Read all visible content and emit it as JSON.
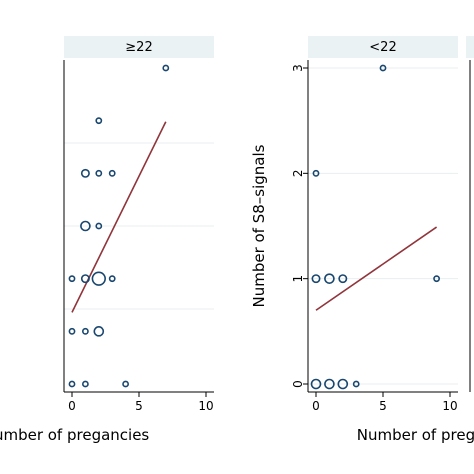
{
  "chart_data": [
    {
      "type": "scatter",
      "strip": "",
      "xlabel": "Number of pregancies",
      "ylabel": "",
      "xlim": [
        0,
        10
      ],
      "ylim": [
        0,
        3
      ],
      "xticks": [
        10
      ],
      "yticks": [],
      "points": [
        {
          "x": 9,
          "y": 1,
          "n": 1
        }
      ],
      "fit": {
        "x1": 0,
        "y1": 0.5,
        "x2": 9,
        "y2": 1.19
      }
    },
    {
      "type": "scatter",
      "strip": "≥22",
      "xlabel": "",
      "ylabel": "",
      "xlim": [
        0,
        10
      ],
      "ylim": [
        0,
        6
      ],
      "xticks": [
        0,
        5,
        10
      ],
      "yticks": [],
      "points": [
        {
          "x": 7,
          "y": 6,
          "n": 1
        },
        {
          "x": 2,
          "y": 5,
          "n": 1
        },
        {
          "x": 1,
          "y": 4,
          "n": 2
        },
        {
          "x": 2,
          "y": 4,
          "n": 1
        },
        {
          "x": 3,
          "y": 4,
          "n": 1
        },
        {
          "x": 1,
          "y": 3,
          "n": 3
        },
        {
          "x": 2,
          "y": 3,
          "n": 1
        },
        {
          "x": 0,
          "y": 2,
          "n": 1
        },
        {
          "x": 1,
          "y": 2,
          "n": 2
        },
        {
          "x": 2,
          "y": 2,
          "n": 6
        },
        {
          "x": 3,
          "y": 2,
          "n": 1
        },
        {
          "x": 0,
          "y": 1,
          "n": 1
        },
        {
          "x": 1,
          "y": 1,
          "n": 1
        },
        {
          "x": 2,
          "y": 1,
          "n": 3
        },
        {
          "x": 0,
          "y": 0,
          "n": 1
        },
        {
          "x": 1,
          "y": 0,
          "n": 1
        },
        {
          "x": 4,
          "y": 0,
          "n": 1
        }
      ],
      "fit": {
        "x1": 0,
        "y1": 1.36,
        "x2": 7,
        "y2": 4.98
      }
    },
    {
      "type": "scatter",
      "strip": "<22",
      "xlabel": "Number of pregancies",
      "ylabel": "Number of S8–signals",
      "xlim": [
        0,
        10
      ],
      "ylim": [
        0,
        3
      ],
      "xticks": [
        0,
        5,
        10
      ],
      "yticks": [
        0,
        1,
        2,
        3
      ],
      "points": [
        {
          "x": 5,
          "y": 3,
          "n": 1
        },
        {
          "x": 0,
          "y": 2,
          "n": 1
        },
        {
          "x": 0,
          "y": 1,
          "n": 2
        },
        {
          "x": 1,
          "y": 1,
          "n": 3
        },
        {
          "x": 2,
          "y": 1,
          "n": 2
        },
        {
          "x": 9,
          "y": 1,
          "n": 1
        },
        {
          "x": 0,
          "y": 0,
          "n": 3
        },
        {
          "x": 1,
          "y": 0,
          "n": 3
        },
        {
          "x": 2,
          "y": 0,
          "n": 3
        },
        {
          "x": 3,
          "y": 0,
          "n": 1
        }
      ],
      "fit": {
        "x1": 0,
        "y1": 0.7,
        "x2": 9,
        "y2": 1.49
      }
    }
  ],
  "colors": {
    "strip_bg": "#eaf2f3",
    "grid": "#e8eef0",
    "marker": "#1a476f",
    "fit_line": "#90353b",
    "axis": "#000000"
  }
}
